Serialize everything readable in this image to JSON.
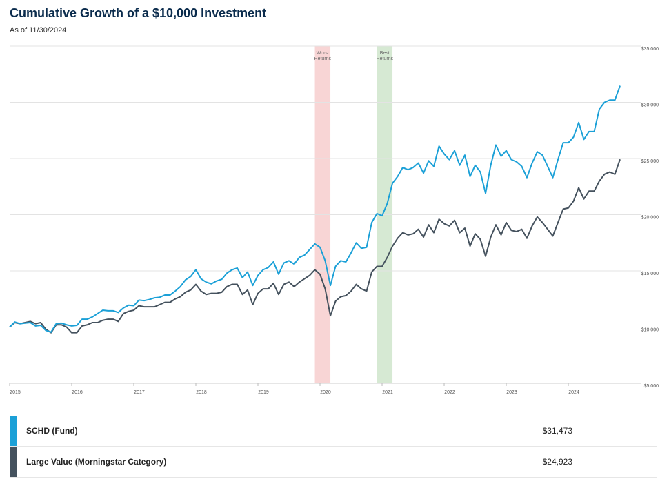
{
  "chart_data": {
    "type": "line",
    "title": "Cumulative Growth of a $10,000 Investment",
    "subtitle": "As of 11/30/2024",
    "x": [
      2015,
      2015.083,
      2015.167,
      2015.25,
      2015.333,
      2015.417,
      2015.5,
      2015.583,
      2015.667,
      2015.75,
      2015.833,
      2015.917,
      2016,
      2016.083,
      2016.167,
      2016.25,
      2016.333,
      2016.417,
      2016.5,
      2016.583,
      2016.667,
      2016.75,
      2016.833,
      2016.917,
      2017,
      2017.083,
      2017.167,
      2017.25,
      2017.333,
      2017.417,
      2017.5,
      2017.583,
      2017.667,
      2017.75,
      2017.833,
      2017.917,
      2018,
      2018.083,
      2018.167,
      2018.25,
      2018.333,
      2018.417,
      2018.5,
      2018.583,
      2018.667,
      2018.75,
      2018.833,
      2018.917,
      2019,
      2019.083,
      2019.167,
      2019.25,
      2019.333,
      2019.417,
      2019.5,
      2019.583,
      2019.667,
      2019.75,
      2019.833,
      2019.917,
      2020,
      2020.083,
      2020.167,
      2020.25,
      2020.333,
      2020.417,
      2020.5,
      2020.583,
      2020.667,
      2020.75,
      2020.833,
      2020.917,
      2021,
      2021.083,
      2021.167,
      2021.25,
      2021.333,
      2021.417,
      2021.5,
      2021.583,
      2021.667,
      2021.75,
      2021.833,
      2021.917,
      2022,
      2022.083,
      2022.167,
      2022.25,
      2022.333,
      2022.417,
      2022.5,
      2022.583,
      2022.667,
      2022.75,
      2022.833,
      2022.917,
      2023,
      2023.083,
      2023.167,
      2023.25,
      2023.333,
      2023.417,
      2023.5,
      2023.583,
      2023.667,
      2023.75,
      2023.833,
      2023.917,
      2024,
      2024.083,
      2024.167,
      2024.25,
      2024.333,
      2024.417,
      2024.5,
      2024.583,
      2024.667,
      2024.75,
      2024.833
    ],
    "series": [
      {
        "name": "SCHD (Fund)",
        "color": "#1ba0d7",
        "end_label": "$31,473",
        "values": [
          10000,
          10450,
          10300,
          10350,
          10400,
          10100,
          10150,
          9700,
          9550,
          10300,
          10350,
          10200,
          10100,
          10150,
          10700,
          10700,
          10900,
          11200,
          11500,
          11450,
          11450,
          11300,
          11700,
          11950,
          11900,
          12400,
          12350,
          12450,
          12600,
          12650,
          12850,
          12850,
          13200,
          13600,
          14200,
          14500,
          15100,
          14300,
          14000,
          13850,
          14100,
          14250,
          14800,
          15100,
          15250,
          14400,
          14900,
          13700,
          14600,
          15100,
          15300,
          15800,
          14700,
          15700,
          15900,
          15600,
          16200,
          16400,
          16900,
          17400,
          17100,
          15900,
          13700,
          15400,
          15900,
          15800,
          16600,
          17500,
          17000,
          17100,
          19300,
          20100,
          19900,
          21000,
          22800,
          23400,
          24200,
          24000,
          24200,
          24600,
          23700,
          24800,
          24300,
          26100,
          25400,
          24900,
          25700,
          24400,
          25300,
          23400,
          24400,
          23800,
          21900,
          24400,
          26200,
          25200,
          25700,
          24900,
          24700,
          24300,
          23300,
          24600,
          25600,
          25300,
          24300,
          23300,
          24900,
          26400,
          26400,
          26900,
          28200,
          26700,
          27400,
          27400,
          29400,
          30000,
          30200,
          30200,
          31473
        ]
      },
      {
        "name": "Large Value (Morningstar Category)",
        "color": "#45525e",
        "end_label": "$24,923",
        "values": [
          10000,
          10400,
          10300,
          10400,
          10500,
          10300,
          10400,
          9800,
          9500,
          10200,
          10200,
          10000,
          9500,
          9500,
          10100,
          10200,
          10400,
          10400,
          10600,
          10700,
          10700,
          10500,
          11200,
          11400,
          11500,
          11900,
          11800,
          11800,
          11800,
          12000,
          12200,
          12200,
          12500,
          12700,
          13100,
          13300,
          13800,
          13200,
          12900,
          13000,
          13000,
          13100,
          13600,
          13800,
          13800,
          12900,
          13300,
          12000,
          13000,
          13400,
          13400,
          13900,
          12900,
          13800,
          14000,
          13600,
          14000,
          14300,
          14600,
          15100,
          14700,
          13400,
          11000,
          12300,
          12700,
          12800,
          13200,
          13800,
          13400,
          13200,
          14900,
          15400,
          15400,
          16200,
          17200,
          17900,
          18400,
          18200,
          18300,
          18700,
          18000,
          19100,
          18400,
          19600,
          19200,
          19000,
          19500,
          18400,
          18800,
          17200,
          18300,
          17800,
          16300,
          18000,
          19100,
          18200,
          19300,
          18600,
          18500,
          18700,
          17900,
          19000,
          19800,
          19300,
          18700,
          18100,
          19300,
          20500,
          20600,
          21200,
          22400,
          21400,
          22100,
          22100,
          23000,
          23600,
          23800,
          23600,
          24923
        ]
      }
    ],
    "annotations": [
      {
        "label_lines": [
          "Worst",
          "Returns"
        ],
        "xrange": [
          2019.917,
          2020.167
        ],
        "color": "#f8d5d5"
      },
      {
        "label_lines": [
          "Best",
          "Returns"
        ],
        "xrange": [
          2020.917,
          2021.167
        ],
        "color": "#d6e9d3"
      }
    ],
    "xlim": [
      2015,
      2024.833
    ],
    "xticks": [
      2015,
      2016,
      2017,
      2018,
      2019,
      2020,
      2021,
      2022,
      2023,
      2024
    ],
    "ylim": [
      5000,
      35000
    ],
    "yticks": [
      {
        "value": 5000,
        "label": "$5,000"
      },
      {
        "value": 10000,
        "label": "$10,000"
      },
      {
        "value": 15000,
        "label": "$15,000"
      },
      {
        "value": 20000,
        "label": "$20,000"
      },
      {
        "value": 25000,
        "label": "$25,000"
      },
      {
        "value": 30000,
        "label": "$30,000"
      },
      {
        "value": 35000,
        "label": "$35,000"
      }
    ],
    "grid": true
  }
}
